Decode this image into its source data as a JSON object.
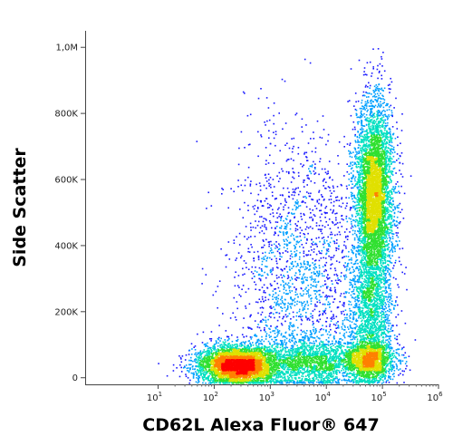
{
  "chart_data": {
    "type": "scatter",
    "subtype": "flow-cytometry-density-dot-plot",
    "title": "",
    "xlabel": "CD62L Alexa Fluor® 647",
    "ylabel": "Side Scatter",
    "x_scale": "log",
    "x_range": [
      0.5,
      1000000
    ],
    "x_ticks": [
      {
        "value": 10,
        "base": "10",
        "exp": "1"
      },
      {
        "value": 100,
        "base": "10",
        "exp": "2"
      },
      {
        "value": 1000,
        "base": "10",
        "exp": "3"
      },
      {
        "value": 10000,
        "base": "10",
        "exp": "4"
      },
      {
        "value": 100000,
        "base": "10",
        "exp": "5"
      },
      {
        "value": 1000000,
        "base": "10",
        "exp": "6"
      }
    ],
    "y_scale": "linear",
    "y_range": [
      -20000,
      1050000
    ],
    "y_ticks": [
      {
        "value": 0,
        "label": "0"
      },
      {
        "value": 200000,
        "label": "200K"
      },
      {
        "value": 400000,
        "label": "400K"
      },
      {
        "value": 600000,
        "label": "600K"
      },
      {
        "value": 800000,
        "label": "800K"
      },
      {
        "value": 1000000,
        "label": "1,0M"
      }
    ],
    "grid": false,
    "legend": "none",
    "density_colors": [
      "#1a1aff",
      "#00a0ff",
      "#00e0c0",
      "#30e030",
      "#e0e000",
      "#ff8000",
      "#ff0000"
    ],
    "populations": [
      {
        "x_center": 250,
        "y_center": 40000,
        "x_spread_decades": 0.35,
        "y_spread": 30000,
        "weight": 0.26
      },
      {
        "x_center": 60000,
        "y_center": 55000,
        "x_spread_decades": 0.22,
        "y_spread": 30000,
        "weight": 0.1
      },
      {
        "x_center": 5000,
        "y_center": 50000,
        "x_spread_decades": 0.55,
        "y_spread": 35000,
        "weight": 0.12
      },
      {
        "x_center": 70000,
        "y_center": 560000,
        "x_spread_decades": 0.17,
        "y_spread": 140000,
        "weight": 0.3
      },
      {
        "x_center": 3000,
        "y_center": 320000,
        "x_spread_decades": 0.6,
        "y_spread": 210000,
        "weight": 0.12
      },
      {
        "x_center": 60000,
        "y_center": 210000,
        "x_spread_decades": 0.2,
        "y_spread": 110000,
        "weight": 0.1
      }
    ],
    "total_events": 16000
  }
}
